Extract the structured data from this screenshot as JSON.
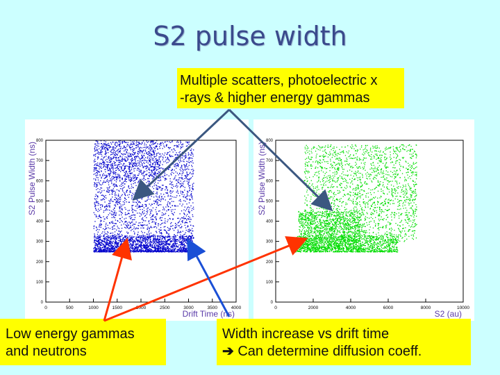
{
  "slide": {
    "title": "S2 pulse width",
    "callout_top": [
      "Multiple scatters, photoelectric x",
      "-rays & higher energy gammas"
    ],
    "callout_left": [
      "Low energy gammas",
      "and neutrons"
    ],
    "callout_right_line1": "Width increase vs drift time",
    "callout_right_arrow": "➔",
    "callout_right_line2": "Can determine diffusion coeff."
  },
  "colors": {
    "background": "#ccffff",
    "callout_fill": "#ffff00",
    "left_points": "#0000cc",
    "right_points": "#00dd00",
    "arrow_gray": "#3b5780",
    "arrow_red": "#ff3300",
    "arrow_blue": "#1a4fd6",
    "axis_label": "#5a3aa8"
  },
  "chart_data": [
    {
      "type": "scatter",
      "xlabel": "Drift Time (ns)",
      "ylabel": "S2 Pulse Width (ns)",
      "xlim": [
        0,
        4000
      ],
      "ylim": [
        0,
        800
      ],
      "xticks": [
        0,
        500,
        1000,
        1500,
        2000,
        2500,
        3000,
        3500,
        4000
      ],
      "xtick_labels": [
        "0",
        "500",
        "1000",
        "1500",
        "2000",
        "2500",
        "3000",
        "3500",
        "4000"
      ],
      "yticks": [
        0,
        100,
        200,
        300,
        400,
        500,
        600,
        700,
        800
      ],
      "color": "#0000cc",
      "populations": [
        {
          "x_range": [
            1000,
            3100
          ],
          "y_range": [
            250,
            330
          ],
          "points": 1800
        },
        {
          "x_range": [
            1000,
            3100
          ],
          "y_range": [
            300,
            800
          ],
          "points": 2200
        },
        {
          "x_range": [
            1000,
            2400
          ],
          "y_range": [
            600,
            800
          ],
          "points": 500
        }
      ]
    },
    {
      "type": "scatter",
      "xlabel": "S2 (au)",
      "ylabel": "S2 Pulse Width (ns)",
      "xlim": [
        0,
        10000
      ],
      "ylim": [
        0,
        800
      ],
      "xticks": [
        0,
        2000,
        4000,
        6000,
        8000,
        10000
      ],
      "xtick_labels": [
        "0",
        "2000",
        "4000",
        "6000",
        "8000",
        "10000"
      ],
      "yticks": [
        0,
        100,
        200,
        300,
        400,
        500,
        600,
        700,
        800
      ],
      "color": "#00dd00",
      "populations": [
        {
          "x_range": [
            1000,
            6500
          ],
          "y_range": [
            250,
            330
          ],
          "points": 1200
        },
        {
          "x_range": [
            1500,
            7500
          ],
          "y_range": [
            300,
            780
          ],
          "points": 2000
        },
        {
          "x_range": [
            1200,
            4500
          ],
          "y_range": [
            260,
            450
          ],
          "points": 1200
        }
      ]
    }
  ]
}
